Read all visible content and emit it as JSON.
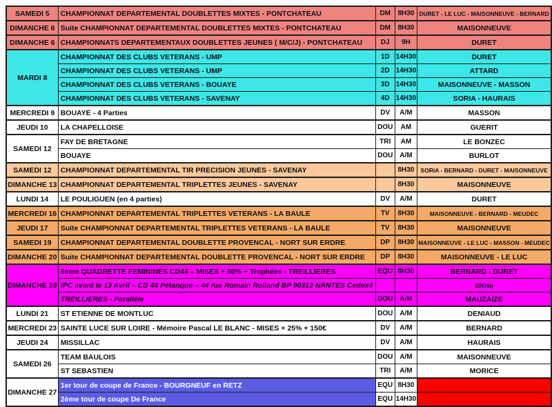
{
  "table": {
    "colors": {
      "salmon": "#F0837E",
      "cyan": "#3EE7E7",
      "white": "#FFFFFF",
      "light_orange": "#FBC99B",
      "orange": "#F5A966",
      "magenta": "#FF00FF",
      "blue": "#5B5BE3",
      "red": "#FF0000"
    },
    "columns": [
      "date",
      "event",
      "code",
      "time",
      "names"
    ],
    "rows": [
      {
        "date": "SAMEDI 5",
        "rs": 1,
        "bg": "salmon",
        "event": "CHAMPIONNAT DEPARTEMENTAL DOUBLETTES MIXTES - PONTCHATEAU",
        "code": "DM",
        "time": "8H30",
        "names": "DURET - LE LUC - MAISONNEUVE - BERNARD",
        "small_names": true
      },
      {
        "date": "DIMANCHE 6",
        "rs": 1,
        "bg": "salmon",
        "event": "Suite CHAMPIONNAT DEPARTEMENTAL DOUBLETTES MIXTES - PONTCHATEAU",
        "code": "DM",
        "time": "8H30",
        "names": "MAISONNEUVE"
      },
      {
        "date": "DIMANCHE 6",
        "rs": 1,
        "bg": "salmon",
        "event": "CHAMPIONNATS DEPARTEMENTAUX DOUBLETTES JEUNES ( M/C/J) - PONTCHATEAU",
        "code": "DJ",
        "time": "9H",
        "names": "DURET"
      },
      {
        "date": "MARDI 8",
        "rs": 4,
        "bg": "cyan",
        "event": "CHAMPIONNAT DES CLUBS VETERANS - UMP",
        "code": "1D",
        "time": "14H30",
        "names": "DURET"
      },
      {
        "date": null,
        "bg": "cyan",
        "event": "CHAMPIONNAT DES CLUBS VETERANS - UMP",
        "code": "2D",
        "time": "14H30",
        "names": "ATTARD"
      },
      {
        "date": null,
        "bg": "cyan",
        "event": "CHAMPIONNAT DES CLUBS VETERANS -  BOUAYE",
        "code": "3D",
        "time": "14H30",
        "names": "MAISONNEUVE - MASSON"
      },
      {
        "date": null,
        "bg": "cyan",
        "event": "CHAMPIONNAT DES CLUBS VETERANS - SAVENAY",
        "code": "4D",
        "time": "14H30",
        "names": "SORIA - HAURAIS"
      },
      {
        "date": "MERCREDI 9",
        "rs": 1,
        "bg": "white",
        "event": "BOUAYE  - 4 Parties",
        "code": "DV",
        "time": "A/M",
        "names": "MASSON"
      },
      {
        "date": "JEUDI 10",
        "rs": 1,
        "bg": "white",
        "event": "LA CHAPELLOISE",
        "code": "DOU",
        "time": "AM",
        "names": "GUERIT"
      },
      {
        "date": "SAMEDI 12",
        "rs": 2,
        "bg": "white",
        "event": "FAY DE BRETAGNE",
        "code": "TRI",
        "time": "AM",
        "names": "LE BONZEC"
      },
      {
        "date": null,
        "bg": "white",
        "event": "BOUAYE",
        "code": "DOU",
        "time": "A/M",
        "names": "BURLOT"
      },
      {
        "date": "SAMEDI 12",
        "rs": 1,
        "bg": "light_orange",
        "event": "CHAMPIONNAT DEPARTEMENTAL TIR PRECISION JEUNES - SAVENAY",
        "code": "",
        "time": "8H30",
        "names": "SORIA - BERNARD - DURET - MAISONNEUVE",
        "small_names": true
      },
      {
        "date": "DIMANCHE 13",
        "rs": 1,
        "bg": "light_orange",
        "event": "CHAMPIONNAT DEPARTEMENTAL TRIPLETTES JEUNES  - SAVENAY",
        "code": "",
        "time": "8H30",
        "names": "MAISONNEUVE"
      },
      {
        "date": "LUNDI 14",
        "rs": 1,
        "bg": "white",
        "event": "LE POULIGUEN (en 4 parties)",
        "code": "DV",
        "time": "A/M",
        "names": "DURET"
      },
      {
        "date": "MERCREDI 16",
        "rs": 1,
        "bg": "orange",
        "event": "CHAMPIONNAT DEPARTEMENTAL TRIPLETTES VETERANS  - LA BAULE",
        "code": "TV",
        "time": "8H30",
        "names": "MAISONNEUVE - BERNARD - MEUDEC",
        "small_names": true
      },
      {
        "date": "JEUDI 17",
        "rs": 1,
        "bg": "orange",
        "event": "Suite CHAMPIONNAT DEPARTEMENTAL TRIPLETTES VETERANS  - LA BAULE",
        "code": "TV",
        "time": "8H30",
        "names": "MAISONNEUVE"
      },
      {
        "date": "SAMEDI 19",
        "rs": 1,
        "bg": "orange",
        "event": "CHAMPIONNAT DEPARTEMENTAL DOUBLETTE PROVENCAL -  NORT SUR ERDRE",
        "code": "DP",
        "time": "8H30",
        "names": "MAISONNEUVE - LE LUC - MASSON - MEUDEC",
        "small_names": true
      },
      {
        "date": "DIMANCHE 20",
        "rs": 1,
        "bg": "orange",
        "event": "Suite CHAMPIONNAT DEPARTEMENTAL DOUBLETTE PROVENCAL -  NORT SUR ERDRE",
        "code": "DP",
        "time": "8H30",
        "names": "MAISONNEUVE - LE LUC"
      },
      {
        "date": "DIMANCHE 20",
        "rs": 3,
        "bg": "magenta",
        "event": "6ème QUADRETTE FEMININES CD44 – MISES + 80% + Trophées - TREILLIERES",
        "code": "EQU",
        "time": "8H30",
        "names": "BERNARD - DURET"
      },
      {
        "date": null,
        "bg": "magenta",
        "italic": true,
        "event": "IPC avant le 13 Avril – CD 44 Pétanque – 44 rue Romain Rolland BP 90312 NANTES Cedex4",
        "code": "",
        "time": "",
        "names": "20€/éq",
        "small_names": true
      },
      {
        "date": null,
        "bg": "magenta",
        "italic": true,
        "event": "TREILLIERES - Parallèle",
        "code": "DOU",
        "time": "A/M",
        "names": "MAUZAIZE"
      },
      {
        "date": "LUNDI 21",
        "rs": 1,
        "bg": "white",
        "event": "ST ETIENNE DE MONTLUC",
        "code": "DOU",
        "time": "A/M",
        "names": "DENIAUD"
      },
      {
        "date": "MERCREDI 23",
        "rs": 1,
        "bg": "white",
        "event": "SAINTE LUCE SUR LOIRE - Mémoire Pascal LE BLANC  -  MISES + 25% + 150€",
        "code": "DV",
        "time": "A/M",
        "names": "BERNARD"
      },
      {
        "date": "JEUDI 24",
        "rs": 1,
        "bg": "white",
        "event": "MISSILLAC",
        "code": "DV",
        "time": "A/M",
        "names": "HAURAIS"
      },
      {
        "date": "SAMEDI 26",
        "rs": 2,
        "bg": "white",
        "event": "TEAM BAULOIS",
        "code": "DOU",
        "time": "A/M",
        "names": "MAISONNEUVE"
      },
      {
        "date": null,
        "bg": "white",
        "event": "ST SEBASTIEN",
        "code": "TRI",
        "time": "A/M",
        "names": "MORICE"
      },
      {
        "date": "DIMANCHE 27",
        "rs": 2,
        "bg": "blue",
        "date_bg": "white",
        "ct_bg": "white",
        "names_bg": "red",
        "white_text": true,
        "event": "1er tour de coupe de France - BOURGNEUF en RETZ",
        "code": "EQU",
        "time": "8H30",
        "names": ""
      },
      {
        "date": null,
        "bg": "blue",
        "ct_bg": "white",
        "names_bg": "red",
        "white_text": true,
        "event": "2ème tour de coupe De France",
        "code": "EQU",
        "time": "14H30",
        "names": ""
      }
    ]
  }
}
